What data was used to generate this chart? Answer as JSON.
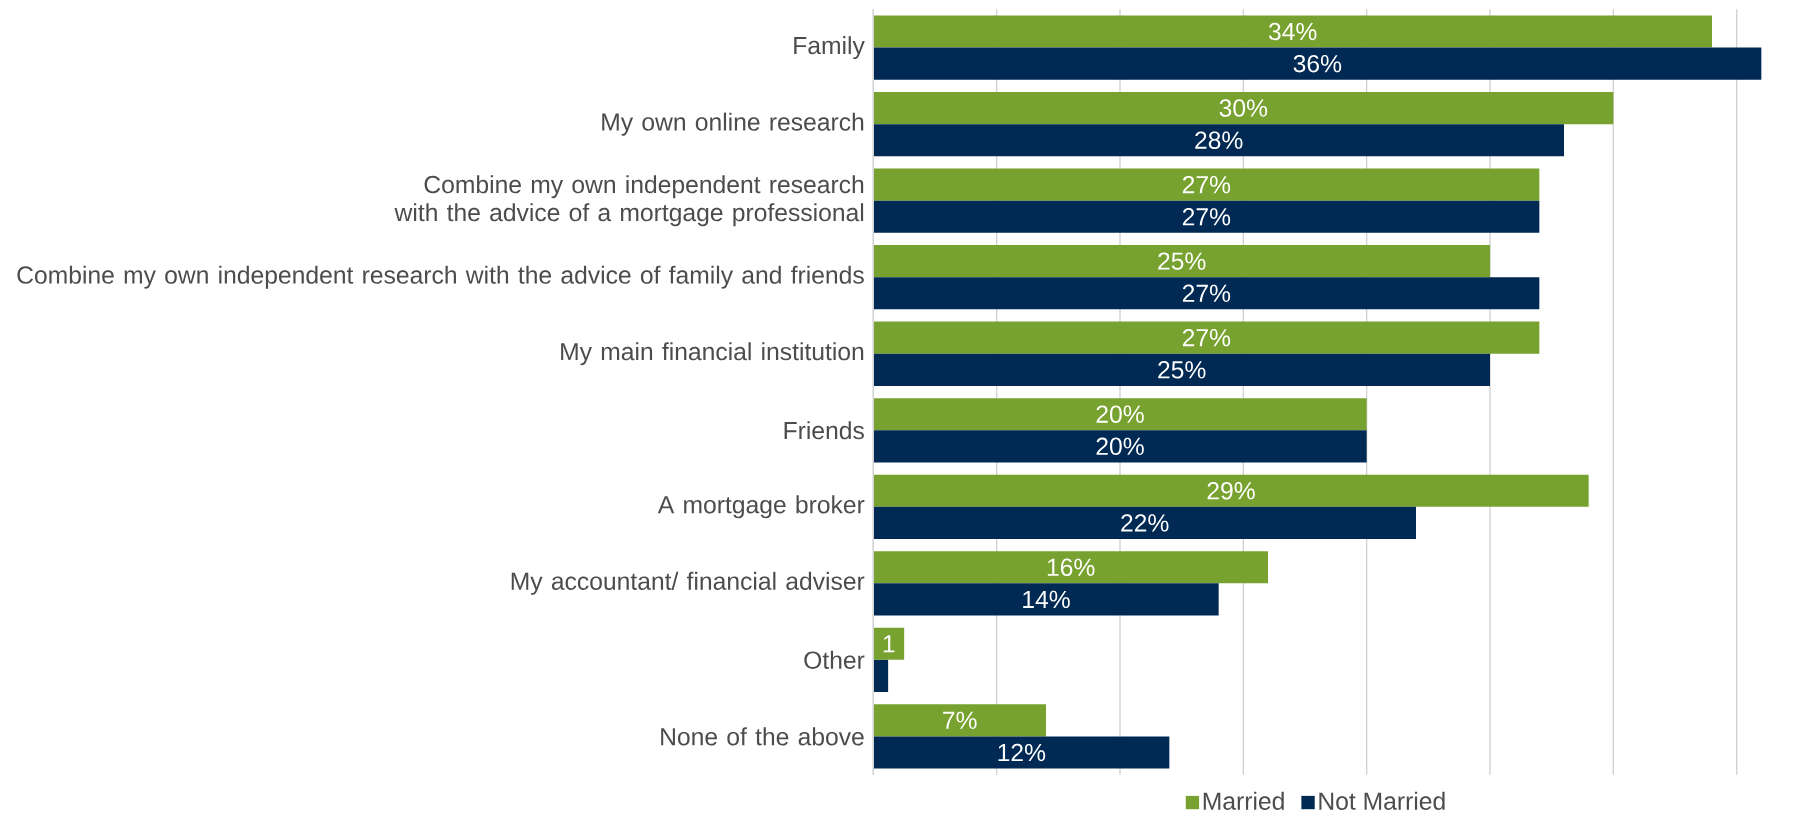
{
  "chart_data": {
    "type": "bar",
    "orientation": "horizontal",
    "categories": [
      "Family",
      "My own online research",
      "Combine my own independent research with the advice of a mortgage professional",
      "Combine my own independent research with the advice of family and friends",
      "My main financial institution",
      "Friends",
      "A mortgage broker",
      "My accountant/ financial adviser",
      "Other",
      "None of the above"
    ],
    "series": [
      {
        "name": "Married",
        "color": "#78a22f",
        "values": [
          34,
          30,
          27,
          25,
          27,
          20,
          29,
          16,
          1.25,
          7
        ],
        "value_labels": [
          "34%",
          "30%",
          "27%",
          "25%",
          "27%",
          "20%",
          "29%",
          "16%",
          "1",
          "7%"
        ]
      },
      {
        "name": "Not Married",
        "color": "#002a54",
        "values": [
          36,
          28,
          27,
          27,
          25,
          20,
          22,
          14,
          0.6,
          12
        ],
        "value_labels": [
          "36%",
          "28%",
          "27%",
          "27%",
          "25%",
          "20%",
          "22%",
          "14%",
          null,
          "12%"
        ]
      }
    ],
    "xlim": [
      0,
      36
    ],
    "xticks": [
      {
        "value": 0,
        "label": null
      },
      {
        "value": 5,
        "label": null
      },
      {
        "value": 10,
        "label": null
      },
      {
        "value": 15,
        "label": null
      },
      {
        "value": 20,
        "label": null
      },
      {
        "value": 25,
        "label": null
      },
      {
        "value": 30,
        "label": null
      },
      {
        "value": 35,
        "label": null
      }
    ],
    "grid": "x",
    "legend": "bottom",
    "tick_labels": "y"
  }
}
